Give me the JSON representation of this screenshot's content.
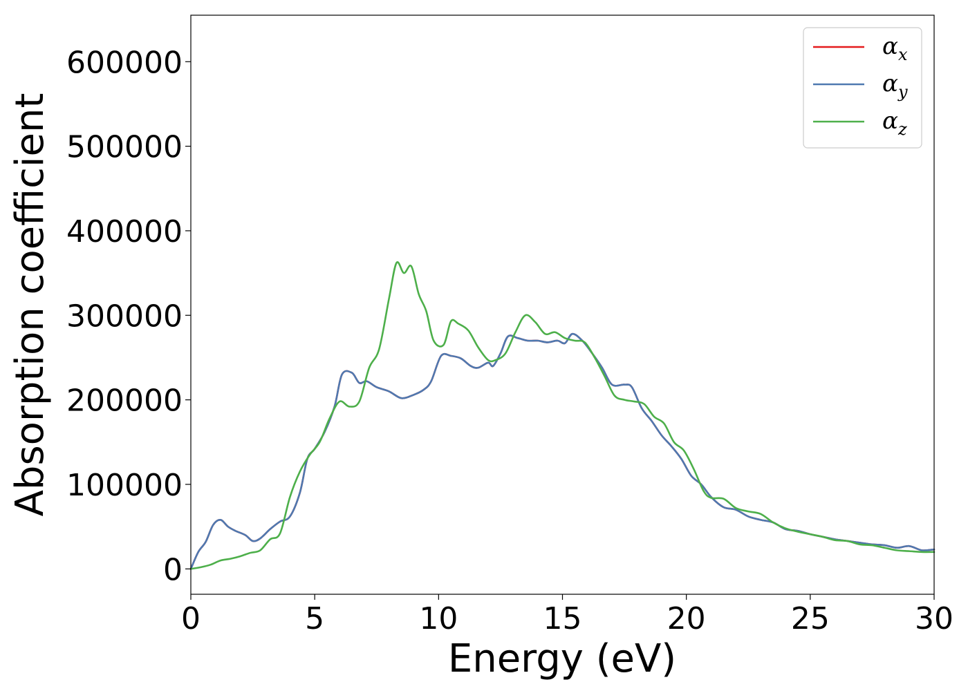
{
  "chart_data": {
    "type": "line",
    "xlabel": "Energy (eV)",
    "ylabel": "Absorption coefficient",
    "xlim": [
      0,
      30
    ],
    "ylim": [
      -30000,
      655000
    ],
    "x_ticks": [
      0,
      5,
      10,
      15,
      20,
      25,
      30
    ],
    "x_tick_labels": [
      "0",
      "5",
      "10",
      "15",
      "20",
      "25",
      "30"
    ],
    "y_ticks": [
      0,
      100000,
      200000,
      300000,
      400000,
      500000,
      600000
    ],
    "y_tick_labels": [
      "0",
      "100000",
      "200000",
      "300000",
      "400000",
      "500000",
      "600000"
    ],
    "grid": false,
    "legend_position": "top-right",
    "series": [
      {
        "name": "α",
        "subscript": "x",
        "color": "#e41a1c",
        "x": [
          0,
          0.3,
          0.6,
          0.9,
          1.2,
          1.5,
          1.8,
          2.2,
          2.5,
          2.8,
          3.2,
          3.6,
          4.0,
          4.4,
          4.7,
          5.0,
          5.4,
          5.8,
          6.1,
          6.5,
          6.8,
          7.1,
          7.5,
          8.0,
          8.5,
          9.0,
          9.4,
          9.7,
          10.1,
          10.5,
          10.9,
          11.3,
          11.6,
          12.0,
          12.2,
          12.5,
          12.8,
          13.2,
          13.6,
          14.0,
          14.4,
          14.8,
          15.1,
          15.4,
          15.8,
          16.2,
          16.6,
          17.0,
          17.5,
          17.8,
          18.2,
          18.6,
          19.0,
          19.4,
          19.8,
          20.2,
          20.6,
          21.0,
          21.5,
          22.0,
          22.5,
          23.0,
          23.5,
          24.0,
          24.5,
          25.0,
          25.5,
          26.0,
          26.5,
          27.0,
          27.5,
          28.0,
          28.5,
          29.0,
          29.5,
          30.0
        ],
        "y": [
          0,
          20000,
          32000,
          52000,
          58000,
          50000,
          45000,
          40000,
          33000,
          36000,
          47000,
          56000,
          62000,
          90000,
          130000,
          142000,
          162000,
          192000,
          230000,
          232000,
          220000,
          222000,
          215000,
          210000,
          202000,
          206000,
          212000,
          222000,
          252000,
          252000,
          249000,
          240000,
          238000,
          244000,
          240000,
          255000,
          275000,
          273000,
          270000,
          270000,
          268000,
          270000,
          267000,
          278000,
          270000,
          255000,
          238000,
          218000,
          218000,
          215000,
          190000,
          175000,
          158000,
          145000,
          130000,
          110000,
          100000,
          85000,
          73000,
          70000,
          62000,
          58000,
          55000,
          47000,
          45000,
          41000,
          38000,
          35000,
          33000,
          31000,
          29000,
          28000,
          25000,
          27000,
          22000,
          23000
        ]
      },
      {
        "name": "α",
        "subscript": "y",
        "color": "#4e79b0",
        "x": [
          0,
          0.3,
          0.6,
          0.9,
          1.2,
          1.5,
          1.8,
          2.2,
          2.5,
          2.8,
          3.2,
          3.6,
          4.0,
          4.4,
          4.7,
          5.0,
          5.4,
          5.8,
          6.1,
          6.5,
          6.8,
          7.1,
          7.5,
          8.0,
          8.5,
          9.0,
          9.4,
          9.7,
          10.1,
          10.5,
          10.9,
          11.3,
          11.6,
          12.0,
          12.2,
          12.5,
          12.8,
          13.2,
          13.6,
          14.0,
          14.4,
          14.8,
          15.1,
          15.4,
          15.8,
          16.2,
          16.6,
          17.0,
          17.5,
          17.8,
          18.2,
          18.6,
          19.0,
          19.4,
          19.8,
          20.2,
          20.6,
          21.0,
          21.5,
          22.0,
          22.5,
          23.0,
          23.5,
          24.0,
          24.5,
          25.0,
          25.5,
          26.0,
          26.5,
          27.0,
          27.5,
          28.0,
          28.5,
          29.0,
          29.5,
          30.0
        ],
        "y": [
          0,
          20000,
          32000,
          52000,
          58000,
          50000,
          45000,
          40000,
          33000,
          36000,
          47000,
          56000,
          62000,
          90000,
          130000,
          142000,
          162000,
          192000,
          230000,
          232000,
          220000,
          222000,
          215000,
          210000,
          202000,
          206000,
          212000,
          222000,
          252000,
          252000,
          249000,
          240000,
          238000,
          244000,
          240000,
          255000,
          275000,
          273000,
          270000,
          270000,
          268000,
          270000,
          267000,
          278000,
          270000,
          255000,
          238000,
          218000,
          218000,
          215000,
          190000,
          175000,
          158000,
          145000,
          130000,
          110000,
          100000,
          85000,
          73000,
          70000,
          62000,
          58000,
          55000,
          47000,
          45000,
          41000,
          38000,
          35000,
          33000,
          31000,
          29000,
          28000,
          25000,
          27000,
          22000,
          23000
        ]
      },
      {
        "name": "α",
        "subscript": "z",
        "color": "#4daf4a",
        "x": [
          0,
          0.4,
          0.8,
          1.2,
          1.6,
          2.0,
          2.4,
          2.8,
          3.2,
          3.6,
          4.0,
          4.4,
          4.8,
          5.2,
          5.6,
          6.0,
          6.4,
          6.8,
          7.2,
          7.6,
          8.0,
          8.3,
          8.6,
          8.9,
          9.2,
          9.5,
          9.8,
          10.2,
          10.5,
          10.8,
          11.2,
          11.6,
          12.0,
          12.3,
          12.7,
          13.1,
          13.5,
          13.9,
          14.3,
          14.7,
          15.1,
          15.5,
          15.9,
          16.3,
          16.7,
          17.1,
          17.5,
          17.9,
          18.3,
          18.7,
          19.1,
          19.5,
          19.9,
          20.3,
          20.7,
          21.0,
          21.5,
          22.0,
          22.5,
          23.0,
          23.5,
          24.0,
          24.5,
          25.0,
          25.5,
          26.0,
          26.5,
          27.0,
          27.5,
          28.0,
          28.5,
          29.0,
          29.5,
          30.0
        ],
        "y": [
          0,
          2000,
          5000,
          10000,
          12000,
          15000,
          19000,
          22000,
          35000,
          42000,
          85000,
          115000,
          135000,
          150000,
          178000,
          198000,
          192000,
          198000,
          238000,
          260000,
          320000,
          362000,
          350000,
          358000,
          325000,
          305000,
          270000,
          265000,
          293000,
          290000,
          282000,
          262000,
          247000,
          247000,
          255000,
          280000,
          300000,
          292000,
          278000,
          280000,
          273000,
          270000,
          268000,
          250000,
          228000,
          205000,
          200000,
          198000,
          195000,
          180000,
          172000,
          150000,
          140000,
          118000,
          92000,
          84000,
          83000,
          72000,
          68000,
          65000,
          55000,
          48000,
          44000,
          41000,
          38000,
          34000,
          33000,
          29000,
          28000,
          25000,
          22000,
          21000,
          20000,
          20000
        ]
      }
    ]
  }
}
